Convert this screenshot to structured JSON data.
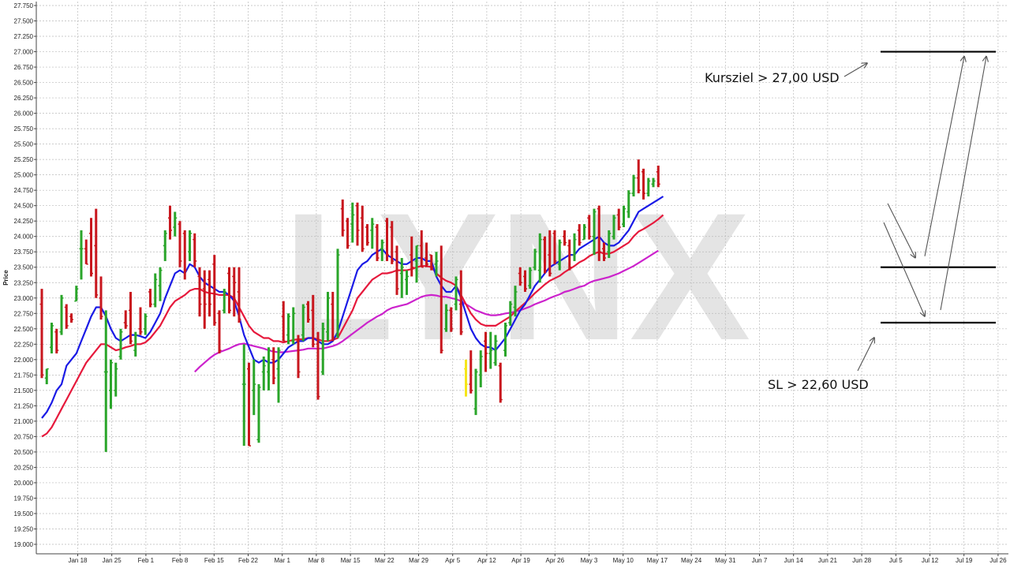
{
  "chart_data": {
    "type": "ohlc",
    "ylabel": "Price",
    "ylim": [
      19.0,
      27.75
    ],
    "ytick_step": 0.25,
    "grid": true,
    "watermark": "LYNX",
    "x_ticks": [
      "Jan 18",
      "Jan 25",
      "Feb 1",
      "Feb 8",
      "Feb 15",
      "Feb 22",
      "Mar 1",
      "Mar 8",
      "Mar 15",
      "Mar 22",
      "Mar 29",
      "Apr 5",
      "Apr 12",
      "Apr 19",
      "Apr 26",
      "May 3",
      "May 10",
      "May 17",
      "May 24",
      "May 31",
      "Jun 7",
      "Jun 14",
      "Jun 21",
      "Jun 28",
      "Jul 5",
      "Jul 12",
      "Jul 19",
      "Jul 26"
    ],
    "y_ticks": [
      "19.000",
      "19.250",
      "19.500",
      "19.750",
      "20.000",
      "20.250",
      "20.500",
      "20.750",
      "21.000",
      "21.250",
      "21.500",
      "21.750",
      "22.000",
      "22.250",
      "22.500",
      "22.750",
      "23.000",
      "23.250",
      "23.500",
      "23.750",
      "24.000",
      "24.250",
      "24.500",
      "24.750",
      "25.000",
      "25.250",
      "25.500",
      "25.750",
      "26.000",
      "26.250",
      "26.500",
      "26.750",
      "27.000",
      "27.250",
      "27.500",
      "27.750"
    ],
    "colors": {
      "up": "#2aa52a",
      "down": "#c8161d",
      "neutral": "#f5e61a",
      "sma_fast": "#1a1ae6",
      "sma_mid": "#e6193c",
      "sma_slow": "#cc22cc",
      "levels": "#000000",
      "arrows": "#555555"
    },
    "bars": [
      {
        "o": 22.9,
        "h": 23.15,
        "l": 21.7,
        "c": 21.75
      },
      {
        "o": 21.7,
        "h": 21.85,
        "l": 21.6,
        "c": 21.85
      },
      {
        "o": 22.2,
        "h": 22.6,
        "l": 22.1,
        "c": 22.55
      },
      {
        "o": 22.45,
        "h": 22.5,
        "l": 22.1,
        "c": 22.15
      },
      {
        "o": 22.45,
        "h": 23.05,
        "l": 22.4,
        "c": 23.0
      },
      {
        "o": 22.85,
        "h": 22.9,
        "l": 22.5,
        "c": 22.55
      },
      {
        "o": 22.7,
        "h": 22.75,
        "l": 22.6,
        "c": 22.65
      },
      {
        "o": 22.95,
        "h": 23.2,
        "l": 22.95,
        "c": 23.15
      },
      {
        "o": 23.8,
        "h": 24.1,
        "l": 23.3,
        "c": 23.8
      },
      {
        "o": 23.8,
        "h": 23.95,
        "l": 23.55,
        "c": 23.55
      },
      {
        "o": 24.05,
        "h": 24.3,
        "l": 23.35,
        "c": 23.4
      },
      {
        "o": 23.85,
        "h": 24.45,
        "l": 23.0,
        "c": 23.05
      },
      {
        "o": 23.0,
        "h": 23.35,
        "l": 22.65,
        "c": 22.7
      },
      {
        "o": 21.8,
        "h": 22.8,
        "l": 20.5,
        "c": 21.8
      },
      {
        "o": 21.5,
        "h": 22.0,
        "l": 21.2,
        "c": 21.95
      },
      {
        "o": 21.5,
        "h": 21.95,
        "l": 21.4,
        "c": 21.85
      },
      {
        "o": 22.05,
        "h": 22.5,
        "l": 22.0,
        "c": 22.45
      },
      {
        "o": 22.6,
        "h": 22.8,
        "l": 22.5,
        "c": 22.55
      },
      {
        "o": 22.8,
        "h": 23.1,
        "l": 22.25,
        "c": 22.3
      },
      {
        "o": 22.15,
        "h": 22.45,
        "l": 22.05,
        "c": 22.4
      },
      {
        "o": 22.5,
        "h": 22.85,
        "l": 22.4,
        "c": 22.45
      },
      {
        "o": 22.5,
        "h": 22.75,
        "l": 22.4,
        "c": 22.7
      },
      {
        "o": 23.1,
        "h": 23.15,
        "l": 22.85,
        "c": 22.9
      },
      {
        "o": 22.9,
        "h": 23.4,
        "l": 22.85,
        "c": 23.3
      },
      {
        "o": 23.2,
        "h": 23.5,
        "l": 22.95,
        "c": 23.45
      },
      {
        "o": 23.85,
        "h": 24.1,
        "l": 23.6,
        "c": 24.05
      },
      {
        "o": 24.3,
        "h": 24.5,
        "l": 23.95,
        "c": 24.1
      },
      {
        "o": 24.15,
        "h": 24.4,
        "l": 24.0,
        "c": 24.3
      },
      {
        "o": 24.2,
        "h": 24.25,
        "l": 23.5,
        "c": 23.6
      },
      {
        "o": 24.05,
        "h": 24.1,
        "l": 23.3,
        "c": 23.45
      },
      {
        "o": 23.75,
        "h": 24.1,
        "l": 23.6,
        "c": 24.05
      },
      {
        "o": 23.95,
        "h": 24.05,
        "l": 23.5,
        "c": 23.6
      },
      {
        "o": 23.35,
        "h": 23.5,
        "l": 22.7,
        "c": 22.9
      },
      {
        "o": 23.15,
        "h": 23.45,
        "l": 22.5,
        "c": 22.9
      },
      {
        "o": 23.3,
        "h": 23.45,
        "l": 22.7,
        "c": 22.9
      },
      {
        "o": 23.55,
        "h": 23.7,
        "l": 22.55,
        "c": 22.6
      },
      {
        "o": 22.75,
        "h": 22.8,
        "l": 22.1,
        "c": 22.15
      },
      {
        "o": 22.8,
        "h": 23.15,
        "l": 22.75,
        "c": 23.1
      },
      {
        "o": 23.4,
        "h": 23.5,
        "l": 22.75,
        "c": 22.8
      },
      {
        "o": 23.35,
        "h": 23.5,
        "l": 22.7,
        "c": 23.25
      },
      {
        "o": 23.1,
        "h": 23.5,
        "l": 22.6,
        "c": 22.65
      },
      {
        "o": 21.6,
        "h": 22.25,
        "l": 20.6,
        "c": 21.6
      },
      {
        "o": 21.85,
        "h": 21.95,
        "l": 20.6,
        "c": 20.6
      },
      {
        "o": 21.5,
        "h": 22.0,
        "l": 21.1,
        "c": 21.6
      },
      {
        "o": 20.7,
        "h": 21.6,
        "l": 20.65,
        "c": 21.55
      },
      {
        "o": 21.8,
        "h": 22.05,
        "l": 21.5,
        "c": 21.9
      },
      {
        "o": 21.8,
        "h": 22.2,
        "l": 21.5,
        "c": 22.15
      },
      {
        "o": 22.0,
        "h": 22.2,
        "l": 21.6,
        "c": 21.7
      },
      {
        "o": 21.85,
        "h": 22.2,
        "l": 21.3,
        "c": 22.15
      },
      {
        "o": 22.7,
        "h": 22.95,
        "l": 22.3,
        "c": 22.3
      },
      {
        "o": 22.4,
        "h": 22.75,
        "l": 22.25,
        "c": 22.7
      },
      {
        "o": 22.3,
        "h": 22.85,
        "l": 22.25,
        "c": 22.75
      },
      {
        "o": 22.3,
        "h": 22.4,
        "l": 21.7,
        "c": 21.8
      },
      {
        "o": 22.4,
        "h": 22.9,
        "l": 22.3,
        "c": 22.85
      },
      {
        "o": 22.9,
        "h": 22.95,
        "l": 22.6,
        "c": 22.65
      },
      {
        "o": 22.8,
        "h": 23.05,
        "l": 22.2,
        "c": 22.25
      },
      {
        "o": 22.25,
        "h": 22.45,
        "l": 21.35,
        "c": 21.4
      },
      {
        "o": 21.8,
        "h": 22.6,
        "l": 21.75,
        "c": 22.5
      },
      {
        "o": 22.45,
        "h": 23.1,
        "l": 22.3,
        "c": 23.0
      },
      {
        "o": 22.9,
        "h": 23.1,
        "l": 22.3,
        "c": 22.35
      },
      {
        "o": 22.4,
        "h": 23.8,
        "l": 22.35,
        "c": 23.7
      },
      {
        "o": 24.45,
        "h": 24.6,
        "l": 24.0,
        "c": 24.1
      },
      {
        "o": 24.25,
        "h": 24.3,
        "l": 23.8,
        "c": 23.85
      },
      {
        "o": 24.2,
        "h": 24.55,
        "l": 23.9,
        "c": 24.35
      },
      {
        "o": 24.5,
        "h": 24.55,
        "l": 23.85,
        "c": 24.1
      },
      {
        "o": 24.3,
        "h": 24.5,
        "l": 23.75,
        "c": 23.8
      },
      {
        "o": 24.15,
        "h": 24.2,
        "l": 23.85,
        "c": 23.9
      },
      {
        "o": 24.1,
        "h": 24.3,
        "l": 23.8,
        "c": 24.2
      },
      {
        "o": 24.15,
        "h": 24.2,
        "l": 23.6,
        "c": 23.65
      },
      {
        "o": 23.8,
        "h": 23.95,
        "l": 23.6,
        "c": 23.9
      },
      {
        "o": 24.25,
        "h": 24.3,
        "l": 23.6,
        "c": 23.7
      },
      {
        "o": 24.15,
        "h": 24.25,
        "l": 23.55,
        "c": 23.6
      },
      {
        "o": 23.75,
        "h": 23.85,
        "l": 23.05,
        "c": 23.15
      },
      {
        "o": 23.4,
        "h": 23.65,
        "l": 23.0,
        "c": 23.5
      },
      {
        "o": 23.3,
        "h": 23.45,
        "l": 23.05,
        "c": 23.35
      },
      {
        "o": 23.7,
        "h": 24.0,
        "l": 23.35,
        "c": 23.5
      },
      {
        "o": 23.6,
        "h": 23.85,
        "l": 23.25,
        "c": 23.85
      },
      {
        "o": 23.85,
        "h": 24.1,
        "l": 23.5,
        "c": 23.5
      },
      {
        "o": 23.65,
        "h": 23.9,
        "l": 23.5,
        "c": 23.55
      },
      {
        "o": 23.7,
        "h": 23.7,
        "l": 23.45,
        "c": 23.5
      },
      {
        "o": 23.55,
        "h": 23.75,
        "l": 23.35,
        "c": 23.6
      },
      {
        "o": 23.35,
        "h": 23.85,
        "l": 22.1,
        "c": 22.15
      },
      {
        "o": 22.5,
        "h": 22.9,
        "l": 22.45,
        "c": 22.8
      },
      {
        "o": 22.8,
        "h": 22.85,
        "l": 22.45,
        "c": 22.5
      },
      {
        "o": 22.9,
        "h": 23.35,
        "l": 22.8,
        "c": 23.3
      },
      {
        "o": 22.9,
        "h": 23.45,
        "l": 22.4,
        "c": 22.45
      },
      {
        "o": 21.85,
        "h": 22.0,
        "l": 21.4,
        "c": 21.6
      },
      {
        "o": 21.6,
        "h": 22.15,
        "l": 21.45,
        "c": 21.5
      },
      {
        "o": 21.2,
        "h": 21.85,
        "l": 21.1,
        "c": 21.8
      },
      {
        "o": 21.75,
        "h": 22.15,
        "l": 21.55,
        "c": 22.05
      },
      {
        "o": 22.3,
        "h": 22.45,
        "l": 21.8,
        "c": 22.1
      },
      {
        "o": 22.1,
        "h": 22.45,
        "l": 21.85,
        "c": 22.15
      },
      {
        "o": 21.95,
        "h": 22.4,
        "l": 21.9,
        "c": 22.3
      },
      {
        "o": 21.9,
        "h": 21.95,
        "l": 21.3,
        "c": 21.35
      },
      {
        "o": 22.15,
        "h": 22.6,
        "l": 22.05,
        "c": 22.55
      },
      {
        "o": 22.6,
        "h": 22.95,
        "l": 22.55,
        "c": 22.9
      },
      {
        "o": 22.85,
        "h": 23.2,
        "l": 22.7,
        "c": 23.1
      },
      {
        "o": 23.4,
        "h": 23.5,
        "l": 23.2,
        "c": 23.25
      },
      {
        "o": 23.35,
        "h": 23.45,
        "l": 23.1,
        "c": 23.15
      },
      {
        "o": 23.2,
        "h": 23.5,
        "l": 23.15,
        "c": 23.45
      },
      {
        "o": 23.5,
        "h": 23.8,
        "l": 23.45,
        "c": 23.75
      },
      {
        "o": 23.45,
        "h": 24.05,
        "l": 23.25,
        "c": 23.95
      },
      {
        "o": 23.95,
        "h": 24.0,
        "l": 23.4,
        "c": 23.45
      },
      {
        "o": 23.7,
        "h": 24.1,
        "l": 23.35,
        "c": 23.4
      },
      {
        "o": 24.05,
        "h": 24.1,
        "l": 23.55,
        "c": 23.6
      },
      {
        "o": 23.55,
        "h": 23.95,
        "l": 23.45,
        "c": 23.9
      },
      {
        "o": 24.0,
        "h": 24.1,
        "l": 23.85,
        "c": 23.9
      },
      {
        "o": 23.85,
        "h": 23.95,
        "l": 23.45,
        "c": 23.5
      },
      {
        "o": 23.7,
        "h": 24.05,
        "l": 23.6,
        "c": 23.95
      },
      {
        "o": 24.1,
        "h": 24.2,
        "l": 23.85,
        "c": 23.9
      },
      {
        "o": 23.95,
        "h": 24.2,
        "l": 23.95,
        "c": 24.15
      },
      {
        "o": 24.3,
        "h": 24.35,
        "l": 23.95,
        "c": 24.0
      },
      {
        "o": 24.0,
        "h": 24.45,
        "l": 23.7,
        "c": 24.4
      },
      {
        "o": 24.45,
        "h": 24.5,
        "l": 23.6,
        "c": 23.75
      },
      {
        "o": 23.8,
        "h": 23.9,
        "l": 23.6,
        "c": 23.65
      },
      {
        "o": 23.75,
        "h": 24.1,
        "l": 23.65,
        "c": 24.05
      },
      {
        "o": 24.0,
        "h": 24.35,
        "l": 23.95,
        "c": 24.3
      },
      {
        "o": 24.35,
        "h": 24.45,
        "l": 24.1,
        "c": 24.15
      },
      {
        "o": 24.2,
        "h": 24.5,
        "l": 24.15,
        "c": 24.45
      },
      {
        "o": 24.4,
        "h": 24.75,
        "l": 24.3,
        "c": 24.7
      },
      {
        "o": 24.7,
        "h": 25.0,
        "l": 24.65,
        "c": 24.95
      },
      {
        "o": 24.95,
        "h": 25.25,
        "l": 24.7,
        "c": 24.75
      },
      {
        "o": 25.05,
        "h": 25.1,
        "l": 24.6,
        "c": 24.7
      },
      {
        "o": 24.7,
        "h": 24.95,
        "l": 24.65,
        "c": 24.9
      },
      {
        "o": 24.85,
        "h": 24.95,
        "l": 24.8,
        "c": 24.9
      },
      {
        "o": 25.05,
        "h": 25.15,
        "l": 24.8,
        "c": 24.85
      }
    ],
    "special_bars": [
      {
        "index": 86,
        "color": "neutral"
      }
    ],
    "sma_fast": [
      21.05,
      21.15,
      21.3,
      21.5,
      21.6,
      21.9,
      22.0,
      22.1,
      22.3,
      22.5,
      22.7,
      22.85,
      22.85,
      22.7,
      22.5,
      22.35,
      22.3,
      22.35,
      22.4,
      22.4,
      22.38,
      22.35,
      22.45,
      22.6,
      22.75,
      23.0,
      23.2,
      23.4,
      23.45,
      23.4,
      23.55,
      23.5,
      23.35,
      23.25,
      23.2,
      23.15,
      23.1,
      23.1,
      23.05,
      22.95,
      22.7,
      22.4,
      22.2,
      22.0,
      21.95,
      22.0,
      21.95,
      21.95,
      22.0,
      22.1,
      22.2,
      22.25,
      22.3,
      22.3,
      22.35,
      22.35,
      22.3,
      22.25,
      22.25,
      22.3,
      22.45,
      22.7,
      22.95,
      23.2,
      23.45,
      23.55,
      23.6,
      23.7,
      23.75,
      23.8,
      23.7,
      23.65,
      23.6,
      23.55,
      23.55,
      23.6,
      23.65,
      23.65,
      23.6,
      23.6,
      23.35,
      23.2,
      23.1,
      23.1,
      23.2,
      23.0,
      22.75,
      22.5,
      22.35,
      22.25,
      22.2,
      22.2,
      22.15,
      22.25,
      22.35,
      22.5,
      22.65,
      22.8,
      22.9,
      23.05,
      23.2,
      23.3,
      23.4,
      23.5,
      23.55,
      23.6,
      23.65,
      23.7,
      23.7,
      23.8,
      23.85,
      23.9,
      23.95,
      24.0,
      23.9,
      23.85,
      23.85,
      23.9,
      24.0,
      24.1,
      24.25,
      24.4,
      24.45,
      24.5,
      24.55,
      24.6,
      24.65
    ],
    "sma_mid": [
      20.75,
      20.8,
      20.9,
      21.05,
      21.2,
      21.35,
      21.5,
      21.65,
      21.8,
      21.95,
      22.05,
      22.15,
      22.25,
      22.25,
      22.2,
      22.15,
      22.17,
      22.2,
      22.22,
      22.25,
      22.25,
      22.28,
      22.35,
      22.45,
      22.55,
      22.7,
      22.85,
      22.95,
      23.0,
      23.05,
      23.12,
      23.15,
      23.15,
      23.1,
      23.08,
      23.07,
      23.05,
      23.05,
      23.05,
      23.0,
      22.85,
      22.7,
      22.55,
      22.45,
      22.4,
      22.35,
      22.35,
      22.3,
      22.3,
      22.28,
      22.3,
      22.32,
      22.33,
      22.33,
      22.35,
      22.35,
      22.33,
      22.3,
      22.3,
      22.32,
      22.35,
      22.5,
      22.65,
      22.8,
      23.0,
      23.1,
      23.2,
      23.3,
      23.35,
      23.4,
      23.4,
      23.42,
      23.45,
      23.45,
      23.45,
      23.47,
      23.5,
      23.52,
      23.52,
      23.5,
      23.4,
      23.33,
      23.28,
      23.25,
      23.2,
      23.05,
      22.9,
      22.75,
      22.65,
      22.58,
      22.55,
      22.55,
      22.55,
      22.6,
      22.65,
      22.7,
      22.78,
      22.85,
      22.92,
      23.0,
      23.08,
      23.15,
      23.22,
      23.28,
      23.32,
      23.36,
      23.42,
      23.47,
      23.52,
      23.58,
      23.62,
      23.68,
      23.72,
      23.75,
      23.72,
      23.72,
      23.75,
      23.8,
      23.85,
      23.9,
      24.0,
      24.08,
      24.12,
      24.17,
      24.22,
      24.28,
      24.35
    ],
    "sma_slow_start": 31,
    "sma_slow": [
      21.8,
      21.88,
      21.95,
      22.02,
      22.08,
      22.12,
      22.15,
      22.18,
      22.22,
      22.25,
      22.26,
      22.24,
      22.22,
      22.2,
      22.18,
      22.15,
      22.13,
      22.12,
      22.12,
      22.13,
      22.14,
      22.15,
      22.16,
      22.18,
      22.18,
      22.18,
      22.18,
      22.2,
      22.22,
      22.25,
      22.3,
      22.36,
      22.42,
      22.48,
      22.54,
      22.6,
      22.65,
      22.7,
      22.74,
      22.8,
      22.84,
      22.86,
      22.88,
      22.9,
      22.94,
      22.98,
      23.02,
      23.04,
      23.05,
      23.04,
      23.02,
      23.02,
      23.0,
      22.98,
      22.95,
      22.9,
      22.85,
      22.8,
      22.77,
      22.74,
      22.72,
      22.72,
      22.73,
      22.75,
      22.76,
      22.78,
      22.8,
      22.83,
      22.86,
      22.9,
      22.93,
      22.96,
      23.0,
      23.03,
      23.06,
      23.1,
      23.12,
      23.15,
      23.18,
      23.2,
      23.25,
      23.28,
      23.3,
      23.32,
      23.34,
      23.37,
      23.4,
      23.44,
      23.48,
      23.52,
      23.57,
      23.62,
      23.67,
      23.72,
      23.77
    ],
    "levels": [
      {
        "name": "target",
        "value": 27.0,
        "x_from": "Jul 12",
        "x_to": "Jul 26"
      },
      {
        "name": "mid",
        "value": 23.5,
        "x_from": "Jul 12",
        "x_to": "Jul 26"
      },
      {
        "name": "stop",
        "value": 22.6,
        "x_from": "Jul 12",
        "x_to": "Jul 26"
      }
    ],
    "annotations": [
      {
        "text": "Kursziel > 27,00 USD"
      },
      {
        "text": "SL > 22,60 USD"
      }
    ]
  }
}
